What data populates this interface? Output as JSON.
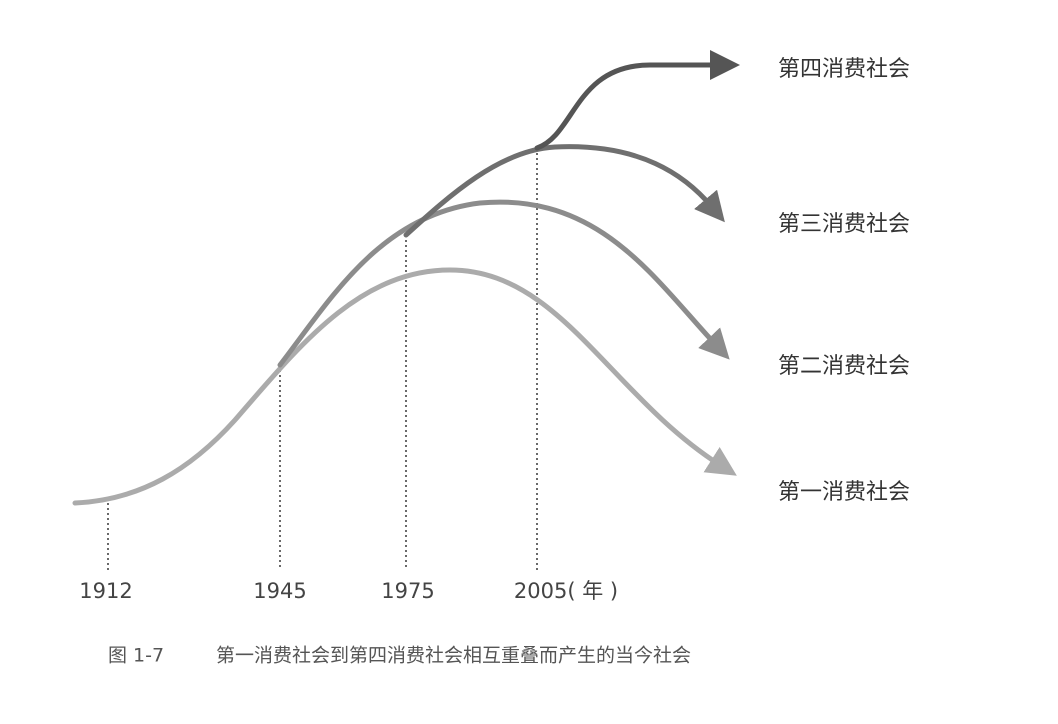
{
  "curves": [
    {
      "label": "第一消费社会"
    },
    {
      "label": "第二消费社会"
    },
    {
      "label": "第三消费社会"
    },
    {
      "label": "第四消费社会"
    }
  ],
  "years": [
    "1912",
    "1945",
    "1975",
    "2005( 年 )"
  ],
  "caption": {
    "number": "图 1-7",
    "text": "第一消费社会到第四消费社会相互重叠而产生的当今社会"
  }
}
